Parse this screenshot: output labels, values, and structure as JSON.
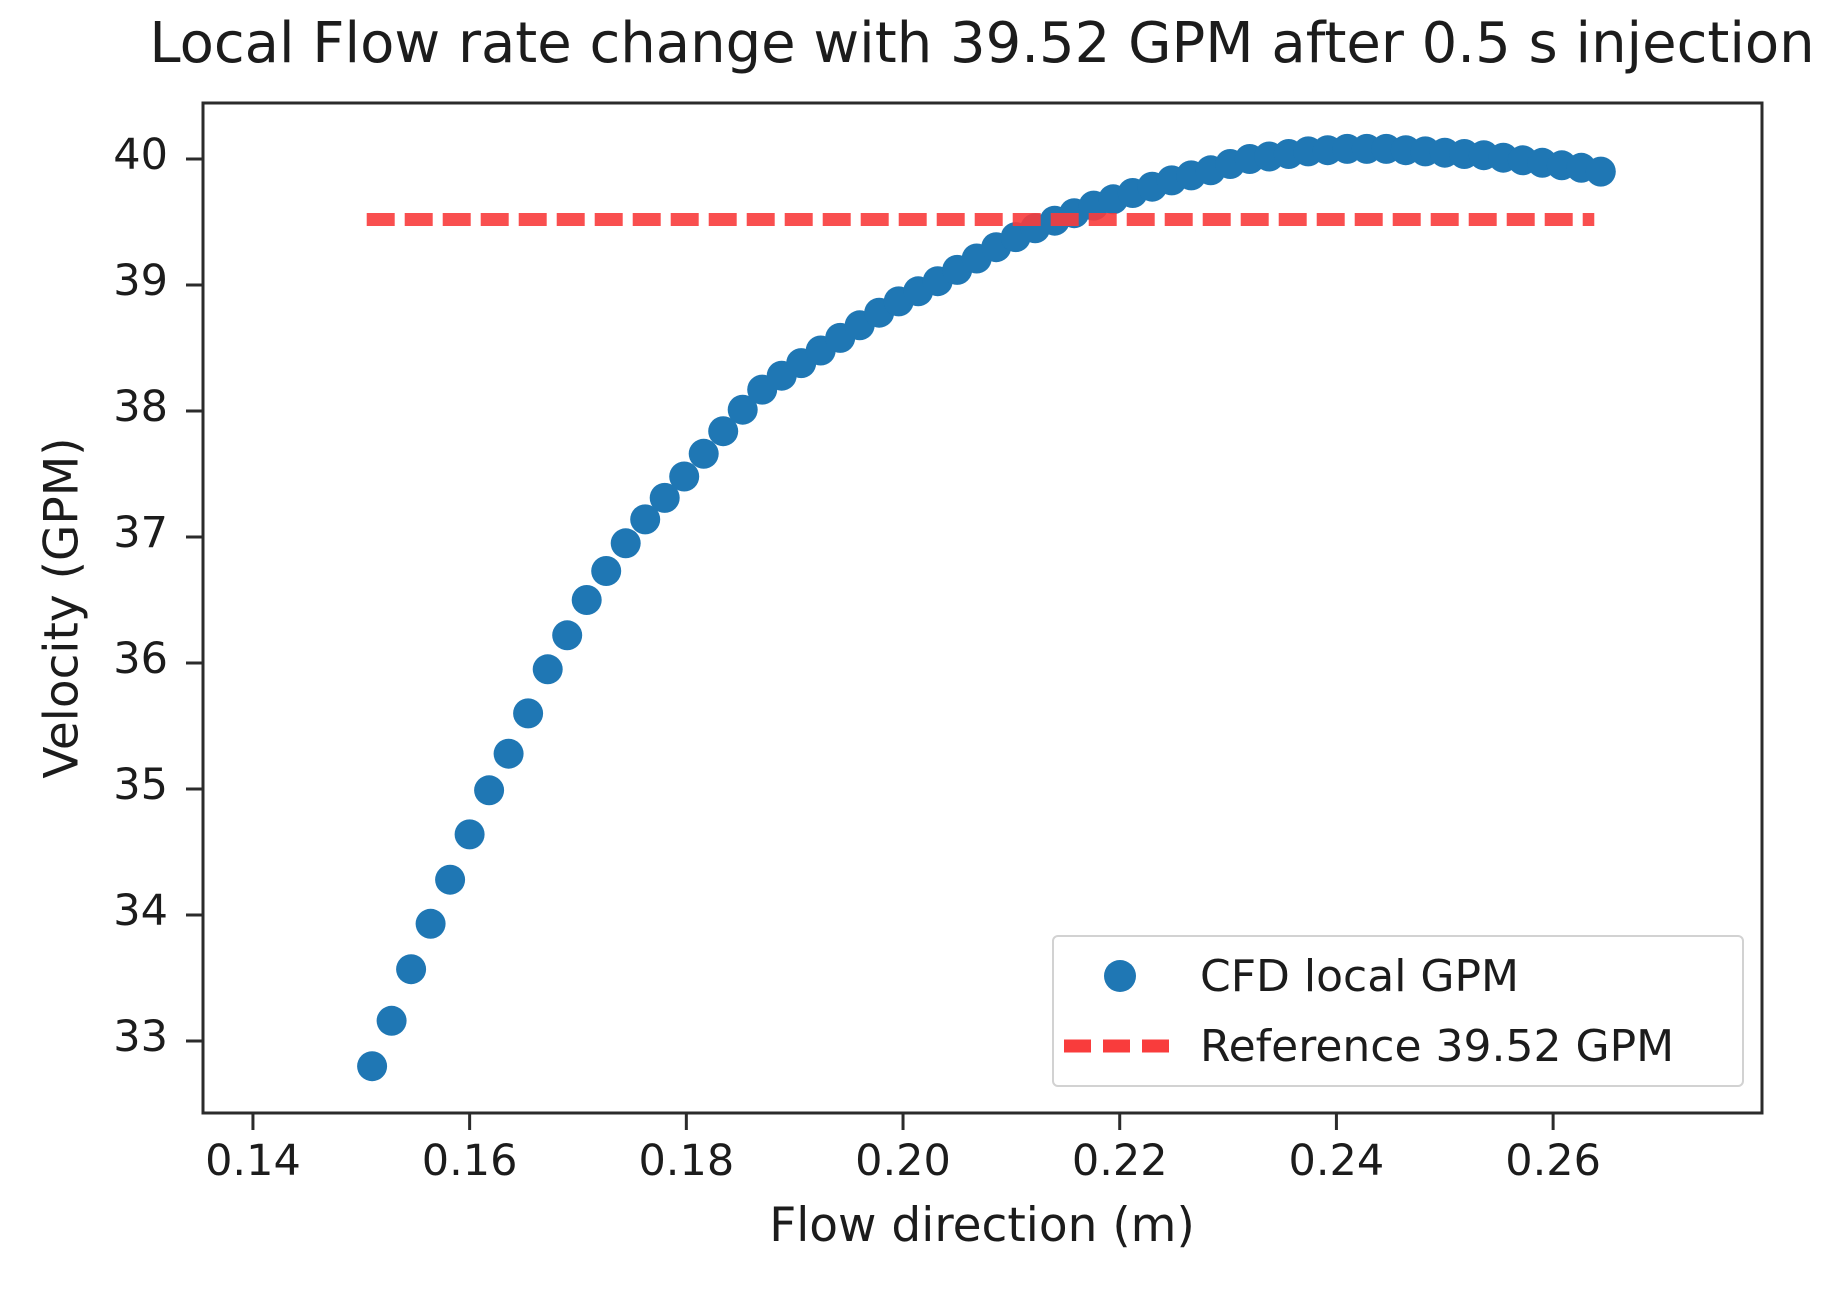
{
  "chart_data": {
    "type": "scatter",
    "title": "Local Flow rate change with 39.52 GPM after 0.5 s injection",
    "xlabel": "Flow direction (m)",
    "ylabel": "Velocity (GPM)",
    "xlim": [
      0.13539,
      0.27928
    ],
    "ylim": [
      32.4286,
      40.4444
    ],
    "grid": false,
    "legend_position": "lower right",
    "x_ticks": {
      "values": [
        0.14,
        0.16,
        0.18,
        0.2,
        0.22,
        0.24,
        0.26
      ],
      "labels": [
        "0.14",
        "0.16",
        "0.18",
        "0.20",
        "0.22",
        "0.24",
        "0.26"
      ]
    },
    "y_ticks": {
      "values": [
        33,
        34,
        35,
        36,
        37,
        38,
        39,
        40
      ],
      "labels": [
        "33",
        "34",
        "35",
        "36",
        "37",
        "38",
        "39",
        "40"
      ]
    },
    "series": [
      {
        "name": "CFD local GPM",
        "type": "scatter",
        "color": "#1f77b4",
        "x": [
          0.151,
          0.1528,
          0.1546,
          0.1564,
          0.1582,
          0.16,
          0.1618,
          0.1636,
          0.1654,
          0.1672,
          0.169,
          0.1708,
          0.1726,
          0.1744,
          0.1762,
          0.178,
          0.1798,
          0.1816,
          0.1834,
          0.1852,
          0.187,
          0.1888,
          0.1906,
          0.1924,
          0.1942,
          0.196,
          0.1978,
          0.1996,
          0.2014,
          0.2032,
          0.205,
          0.2068,
          0.2086,
          0.2104,
          0.2122,
          0.214,
          0.2158,
          0.2176,
          0.2194,
          0.2212,
          0.223,
          0.2248,
          0.2266,
          0.2284,
          0.2302,
          0.232,
          0.2338,
          0.2356,
          0.2374,
          0.2392,
          0.241,
          0.2428,
          0.2446,
          0.2464,
          0.2482,
          0.25,
          0.2518,
          0.2536,
          0.2554,
          0.2572,
          0.259,
          0.2608,
          0.2626,
          0.2644
        ],
        "y": [
          32.8,
          33.16,
          33.57,
          33.93,
          34.28,
          34.64,
          34.99,
          35.28,
          35.6,
          35.95,
          36.22,
          36.5,
          36.73,
          36.95,
          37.14,
          37.31,
          37.48,
          37.66,
          37.84,
          38.01,
          38.17,
          38.28,
          38.38,
          38.48,
          38.58,
          38.68,
          38.78,
          38.87,
          38.95,
          39.03,
          39.12,
          39.21,
          39.3,
          39.38,
          39.45,
          39.51,
          39.57,
          39.63,
          39.68,
          39.73,
          39.78,
          39.83,
          39.87,
          39.91,
          39.96,
          40.0,
          40.02,
          40.04,
          40.06,
          40.07,
          40.08,
          40.08,
          40.08,
          40.07,
          40.06,
          40.05,
          40.04,
          40.03,
          40.01,
          39.99,
          39.97,
          39.95,
          39.93,
          39.9
        ]
      },
      {
        "name": "Reference 39.52 GPM",
        "type": "dashed_line",
        "color": "#f93c3c",
        "value": 39.52,
        "x_start": 0.1505,
        "x_end": 0.2638
      }
    ]
  }
}
